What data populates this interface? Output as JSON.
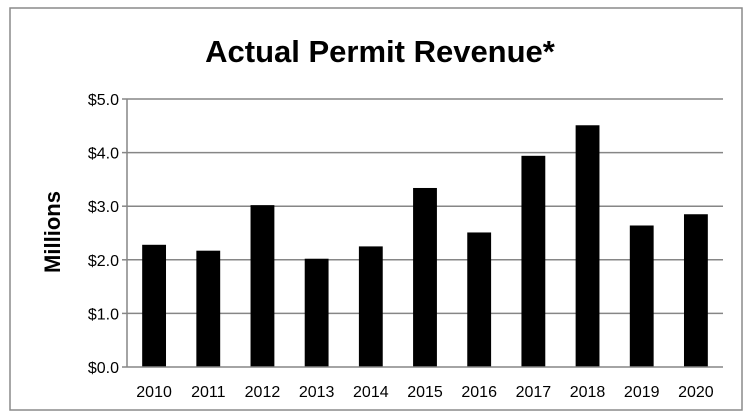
{
  "chart_data": {
    "type": "bar",
    "title": "Actual Permit Revenue*",
    "xlabel": "",
    "ylabel": "Millions",
    "categories": [
      "2010",
      "2011",
      "2012",
      "2013",
      "2014",
      "2015",
      "2016",
      "2017",
      "2018",
      "2019",
      "2020"
    ],
    "values": [
      2.28,
      2.17,
      3.02,
      2.02,
      2.25,
      3.34,
      2.51,
      3.94,
      4.51,
      2.64,
      2.85
    ],
    "ylim": [
      0,
      5
    ],
    "yticks": [
      0,
      1,
      2,
      3,
      4,
      5
    ],
    "ytick_labels": [
      "$0.0",
      "$1.0",
      "$2.0",
      "$3.0",
      "$4.0",
      "$5.0"
    ],
    "grid": true,
    "legend": "none",
    "bar_color": "#000000",
    "grid_color": "#868686"
  }
}
